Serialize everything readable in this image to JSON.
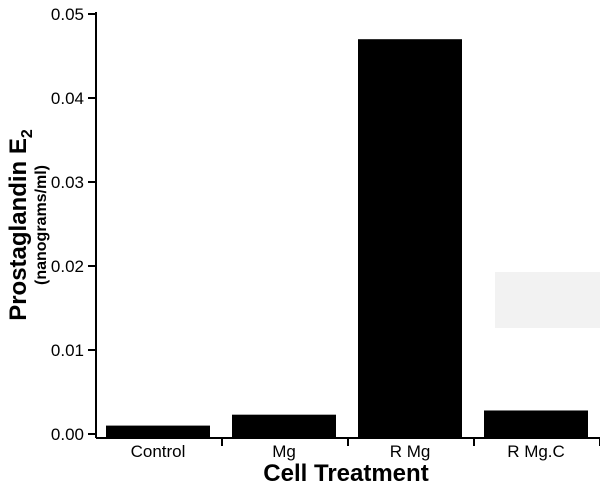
{
  "chart_data": {
    "type": "bar",
    "categories": [
      "Control",
      "Mg",
      "R Mg",
      "R Mg.C"
    ],
    "values": [
      0.001,
      0.0023,
      0.047,
      0.0028
    ],
    "ytick_labels": [
      "0.00",
      "0.01",
      "0.02",
      "0.03",
      "0.04",
      "0.05"
    ],
    "ylim": [
      0,
      0.05
    ],
    "xlabel": "Cell Treatment",
    "ylabel": {
      "main": "Prostaglandin E",
      "subscript": "2",
      "units": "(nanograms/ml)"
    },
    "bar_color": "#000000",
    "legend": "none",
    "grid": false
  }
}
